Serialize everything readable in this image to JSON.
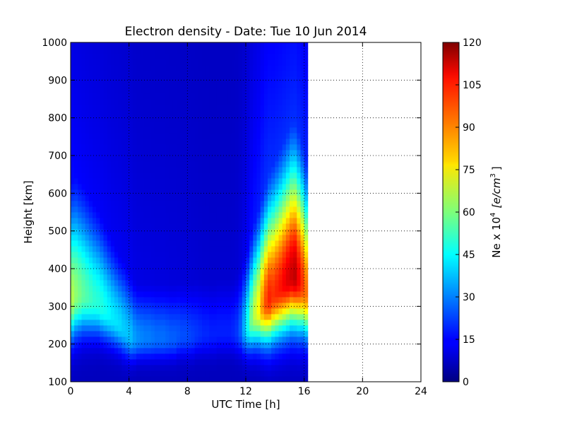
{
  "chart_data": {
    "type": "heatmap",
    "title": "Electron density - Date: Tue 10 Jun 2014",
    "xlabel": "UTC Time [h]",
    "ylabel": "Height [km]",
    "xlim": [
      0,
      24
    ],
    "ylim": [
      100,
      1000
    ],
    "x_ticks": [
      "0",
      "4",
      "8",
      "12",
      "16",
      "20",
      "24"
    ],
    "y_ticks": [
      "100",
      "200",
      "300",
      "400",
      "500",
      "600",
      "700",
      "800",
      "900",
      "1000"
    ],
    "grid": true,
    "colormap": "jet",
    "data_extent_hours": [
      0,
      16.25
    ],
    "colorbar": {
      "label_text": "Ne x 10",
      "label_exponent": "4",
      "label_units": "[e/cm",
      "label_units_exponent": "3",
      "label_close": "]",
      "min": 0,
      "max": 120,
      "ticks": [
        "0",
        "15",
        "30",
        "45",
        "60",
        "75",
        "90",
        "105",
        "120"
      ]
    },
    "time_samples_h": [
      0,
      0.25,
      0.5,
      0.75,
      1,
      1.25,
      1.5,
      1.75,
      2,
      2.25,
      2.5,
      2.75,
      3,
      3.25,
      3.5,
      3.75,
      4,
      4.25,
      4.5,
      4.75,
      5,
      5.25,
      5.5,
      5.75,
      6,
      6.25,
      6.5,
      6.75,
      7,
      7.25,
      7.5,
      7.75,
      8,
      8.25,
      8.5,
      8.75,
      9,
      9.25,
      9.5,
      9.75,
      10,
      10.25,
      10.5,
      10.75,
      11,
      11.25,
      11.5,
      11.75,
      12,
      12.25,
      12.5,
      12.75,
      13,
      13.25,
      13.5,
      13.75,
      14,
      14.25,
      14.5,
      14.75,
      15,
      15.25,
      15.5,
      15.75,
      16
    ],
    "peak_height_km": [
      320,
      330,
      330,
      330,
      325,
      320,
      315,
      310,
      300,
      290,
      280,
      270,
      260,
      250,
      240,
      230,
      220,
      215,
      215,
      215,
      215,
      215,
      215,
      215,
      215,
      215,
      215,
      215,
      215,
      220,
      220,
      220,
      220,
      220,
      225,
      225,
      225,
      225,
      225,
      225,
      230,
      230,
      230,
      230,
      230,
      230,
      235,
      240,
      250,
      265,
      280,
      290,
      300,
      310,
      320,
      330,
      340,
      350,
      360,
      370,
      380,
      380,
      370,
      360,
      340
    ],
    "peak_density": [
      62,
      58,
      55,
      52,
      50,
      48,
      46,
      45,
      44,
      42,
      40,
      38,
      37,
      36,
      34,
      33,
      32,
      28,
      26,
      25,
      24,
      24,
      23,
      22,
      22,
      22,
      21,
      20,
      20,
      19,
      18,
      18,
      17,
      16,
      15,
      14,
      13,
      13,
      12,
      12,
      12,
      12,
      12,
      12,
      13,
      15,
      20,
      30,
      42,
      55,
      65,
      72,
      85,
      95,
      100,
      98,
      100,
      102,
      105,
      108,
      110,
      112,
      105,
      98,
      90
    ],
    "layer_width_km": [
      160,
      160,
      155,
      150,
      145,
      140,
      135,
      130,
      125,
      120,
      115,
      110,
      105,
      100,
      100,
      95,
      90,
      85,
      80,
      80,
      80,
      80,
      80,
      80,
      80,
      80,
      80,
      80,
      80,
      80,
      80,
      80,
      80,
      80,
      80,
      80,
      80,
      80,
      80,
      80,
      80,
      80,
      80,
      80,
      80,
      85,
      90,
      100,
      110,
      120,
      130,
      140,
      150,
      160,
      170,
      175,
      180,
      185,
      190,
      195,
      200,
      200,
      195,
      185,
      175
    ]
  }
}
